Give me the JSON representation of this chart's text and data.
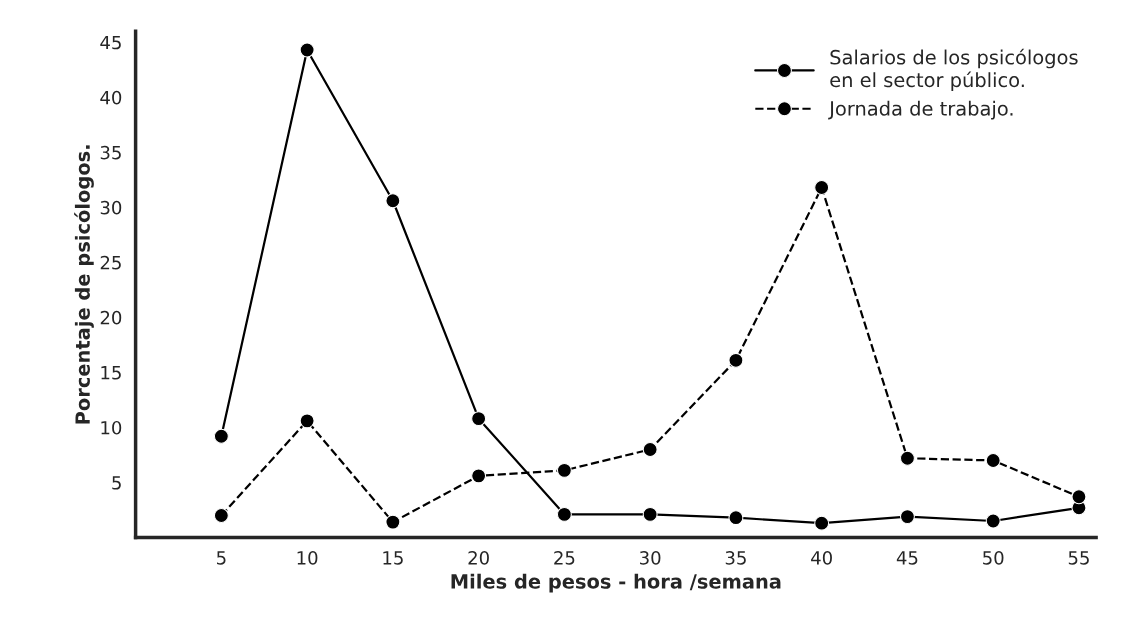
{
  "chart_data": {
    "type": "line",
    "xlabel": "Miles de pesos - hora /semana",
    "ylabel": "Porcentaje de psicólogos.",
    "x": [
      5,
      10,
      15,
      20,
      25,
      30,
      35,
      40,
      45,
      50,
      55
    ],
    "series": [
      {
        "name": "Salarios de los psicólogos\nen el sector público.",
        "color": "#000000",
        "line_style": "solid",
        "values": [
          9.2,
          44.3,
          30.6,
          10.8,
          2.1,
          2.1,
          1.8,
          1.3,
          1.9,
          1.5,
          2.7
        ]
      },
      {
        "name": "Jornada de trabajo.",
        "color": "#000000",
        "line_style": "dashed",
        "values": [
          2.0,
          10.6,
          1.4,
          5.6,
          6.1,
          8.0,
          16.1,
          31.8,
          7.2,
          7.0,
          3.7
        ]
      }
    ],
    "xlim": [
      0,
      56
    ],
    "ylim": [
      0,
      46
    ],
    "xticks": [
      5,
      10,
      15,
      20,
      25,
      30,
      35,
      40,
      45,
      50,
      55
    ],
    "yticks": [
      5,
      10,
      15,
      20,
      25,
      30,
      35,
      40,
      45
    ],
    "marker": "circle",
    "legend": "top right",
    "grid": false
  }
}
